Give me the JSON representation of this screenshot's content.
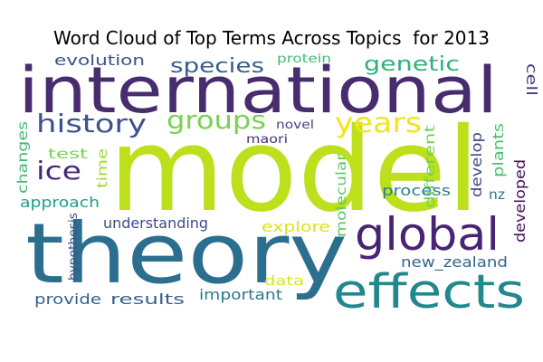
{
  "title": "Word Cloud of Top Terms Across Topics  for 2013",
  "words": [
    {
      "text": "model",
      "color": "#bde01c"
    },
    {
      "text": "international",
      "color": "#472c6e"
    },
    {
      "text": "theory",
      "color": "#2c6e8e"
    },
    {
      "text": "effects",
      "color": "#23888e"
    },
    {
      "text": "global",
      "color": "#482474"
    },
    {
      "text": "history",
      "color": "#3a538b"
    },
    {
      "text": "groups",
      "color": "#7ad151"
    },
    {
      "text": "years",
      "color": "#f1e51d"
    },
    {
      "text": "ice",
      "color": "#482778"
    },
    {
      "text": "species",
      "color": "#355f8d"
    },
    {
      "text": "genetic",
      "color": "#2db27d"
    },
    {
      "text": "evolution",
      "color": "#3b528b"
    },
    {
      "text": "protein",
      "color": "#3fbc73"
    },
    {
      "text": "cell",
      "color": "#453781"
    },
    {
      "text": "novel",
      "color": "#414487"
    },
    {
      "text": "maori",
      "color": "#46327e"
    },
    {
      "text": "changes",
      "color": "#3fbc73"
    },
    {
      "text": "test",
      "color": "#7ad151"
    },
    {
      "text": "time",
      "color": "#a0da39"
    },
    {
      "text": "approach",
      "color": "#1f9e89"
    },
    {
      "text": "hypothesis",
      "color": "#3b528b"
    },
    {
      "text": "understanding",
      "color": "#3e4a89"
    },
    {
      "text": "explore",
      "color": "#dde318"
    },
    {
      "text": "molecular",
      "color": "#5ec962"
    },
    {
      "text": "different",
      "color": "#73d056"
    },
    {
      "text": "develop",
      "color": "#3e4989"
    },
    {
      "text": "plants",
      "color": "#4ac16d"
    },
    {
      "text": "developed",
      "color": "#471063"
    },
    {
      "text": "process",
      "color": "#26828e"
    },
    {
      "text": "nz",
      "color": "#2a788e"
    },
    {
      "text": "new_zealand",
      "color": "#31688e"
    },
    {
      "text": "data",
      "color": "#dde318"
    },
    {
      "text": "important",
      "color": "#2a788e"
    },
    {
      "text": "provide",
      "color": "#33638d"
    },
    {
      "text": "results",
      "color": "#355f8d"
    }
  ]
}
